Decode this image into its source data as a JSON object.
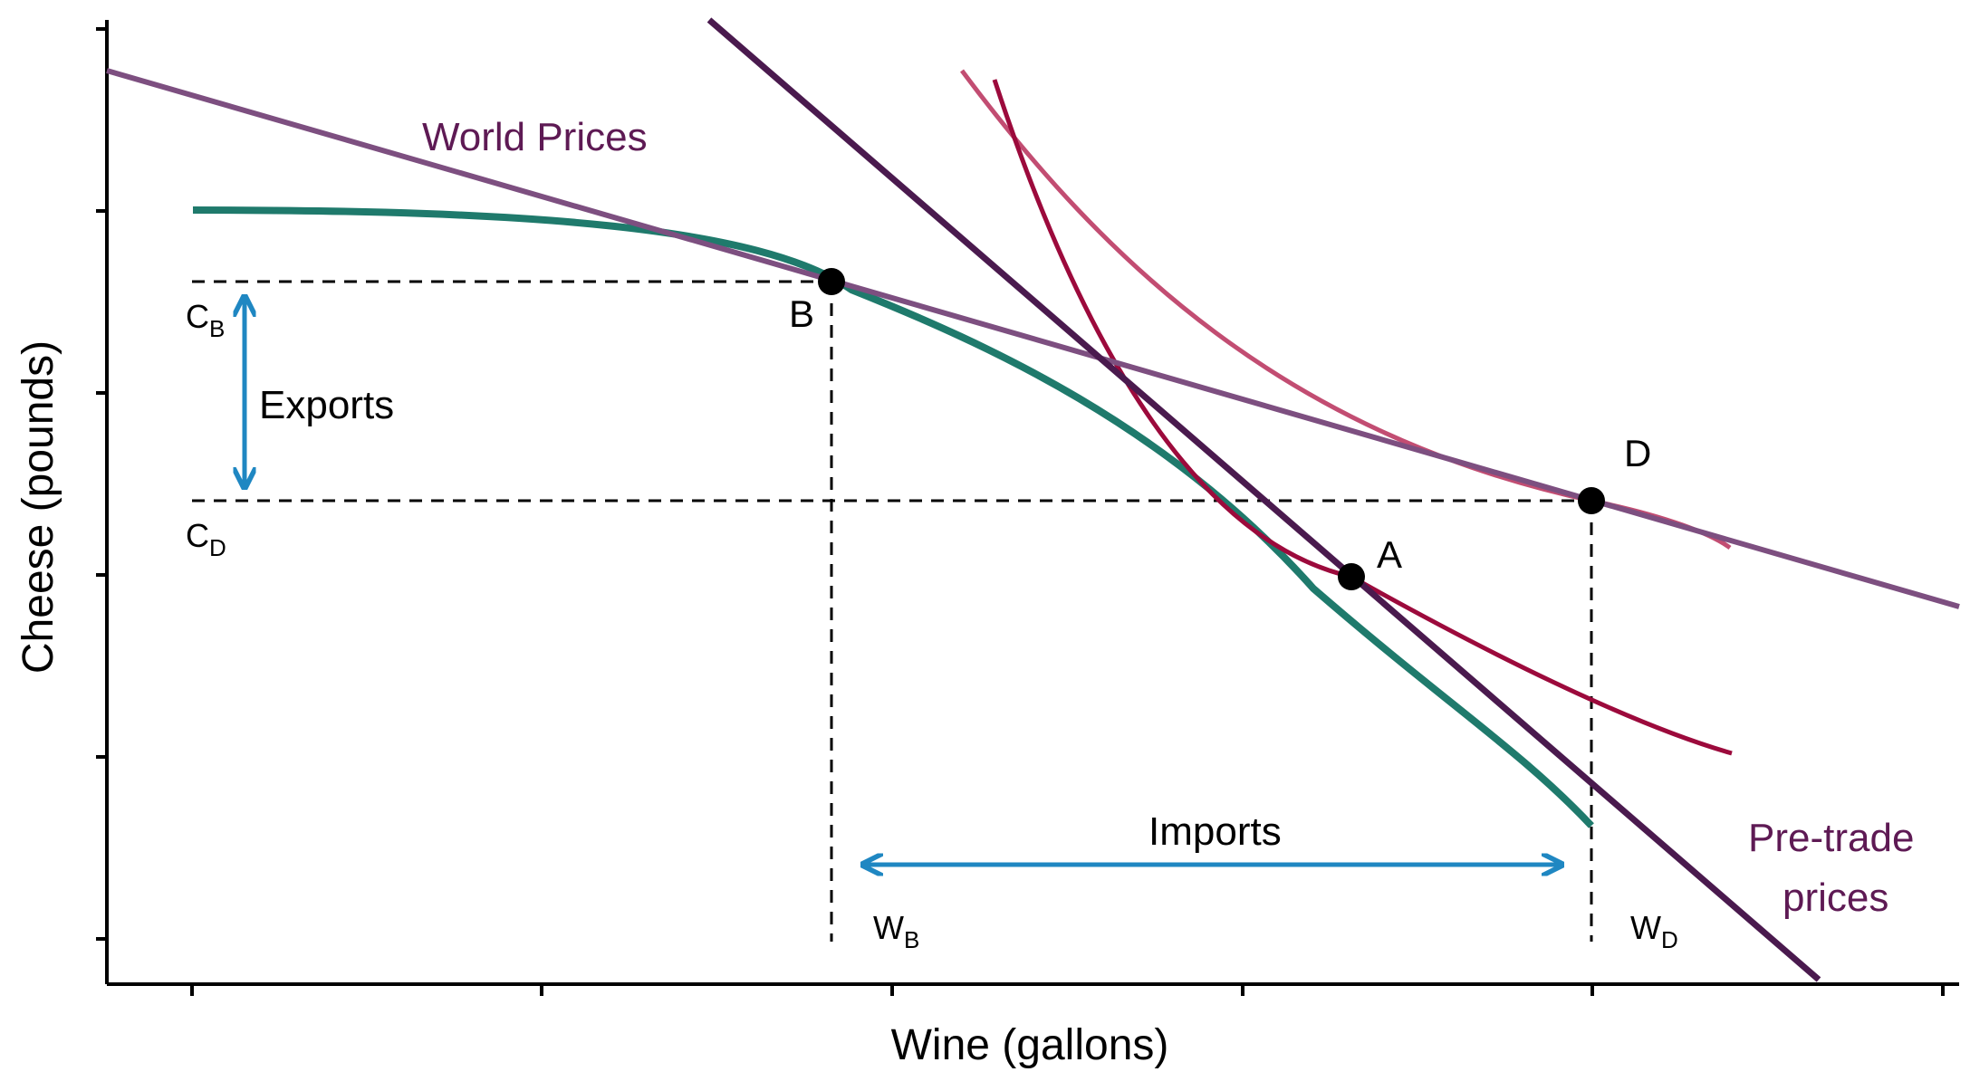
{
  "axes": {
    "x_title": "Wine (gallons)",
    "y_title": "Cheese (pounds)"
  },
  "labels": {
    "world_prices": "World Prices",
    "pretrade_line1": "Pre-trade",
    "pretrade_line2": "prices",
    "exports": "Exports",
    "imports": "Imports",
    "point_a": "A",
    "point_b": "B",
    "point_d": "D",
    "cb_main": "C",
    "cb_sub": "B",
    "cd_main": "C",
    "cd_sub": "D",
    "wb_main": "W",
    "wb_sub": "B",
    "wd_main": "W",
    "wd_sub": "D"
  },
  "colors": {
    "ppf": "#1f7a6c",
    "world_price_line": "#7d4f80",
    "pretrade_line": "#4a1a4e",
    "indifference_pretrade": "#9c0a3c",
    "indifference_trade": "#c24d72",
    "arrow": "#1f87c2",
    "purple_text": "#5e1a54"
  }
}
